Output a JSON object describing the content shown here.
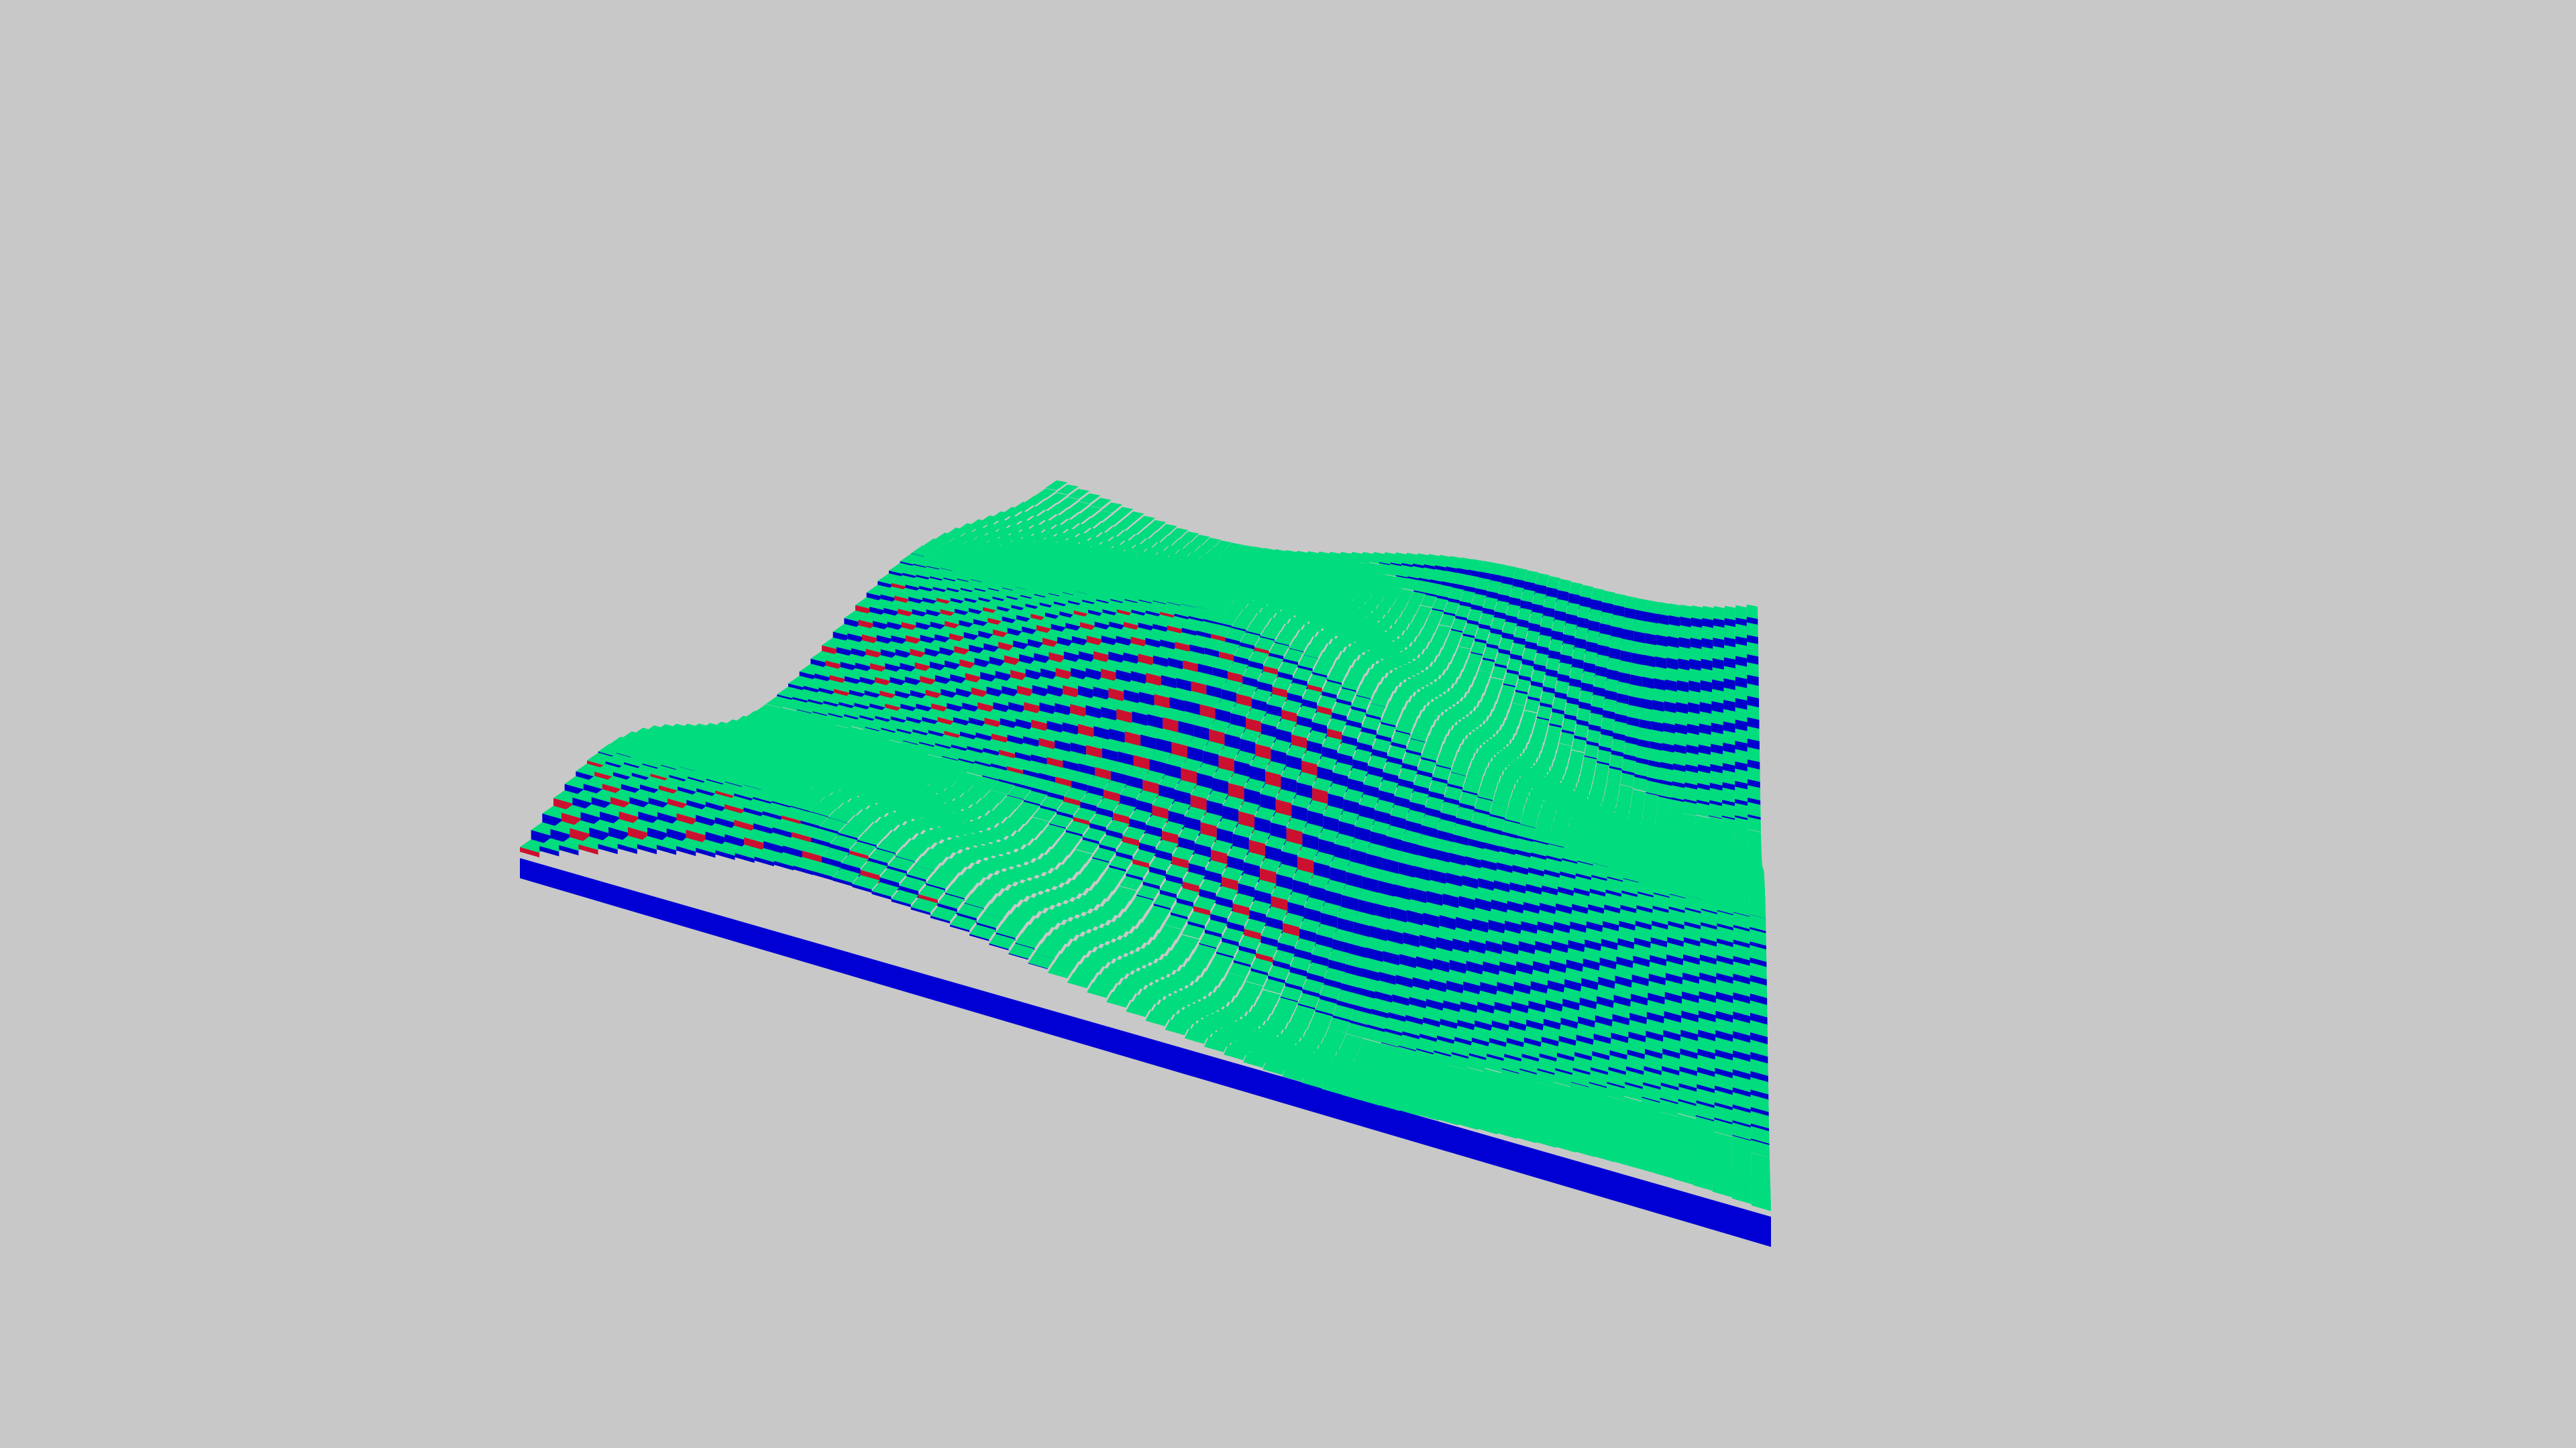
{
  "scene": {
    "background_color": "#c8c8c8",
    "object": "voxel-terrain-heightmap",
    "colors": {
      "top_face": "#00dc7e",
      "edge_face_main": "#0000cc",
      "edge_face_steep": "#cc1030",
      "edge_face_front": "#0000d4"
    }
  }
}
